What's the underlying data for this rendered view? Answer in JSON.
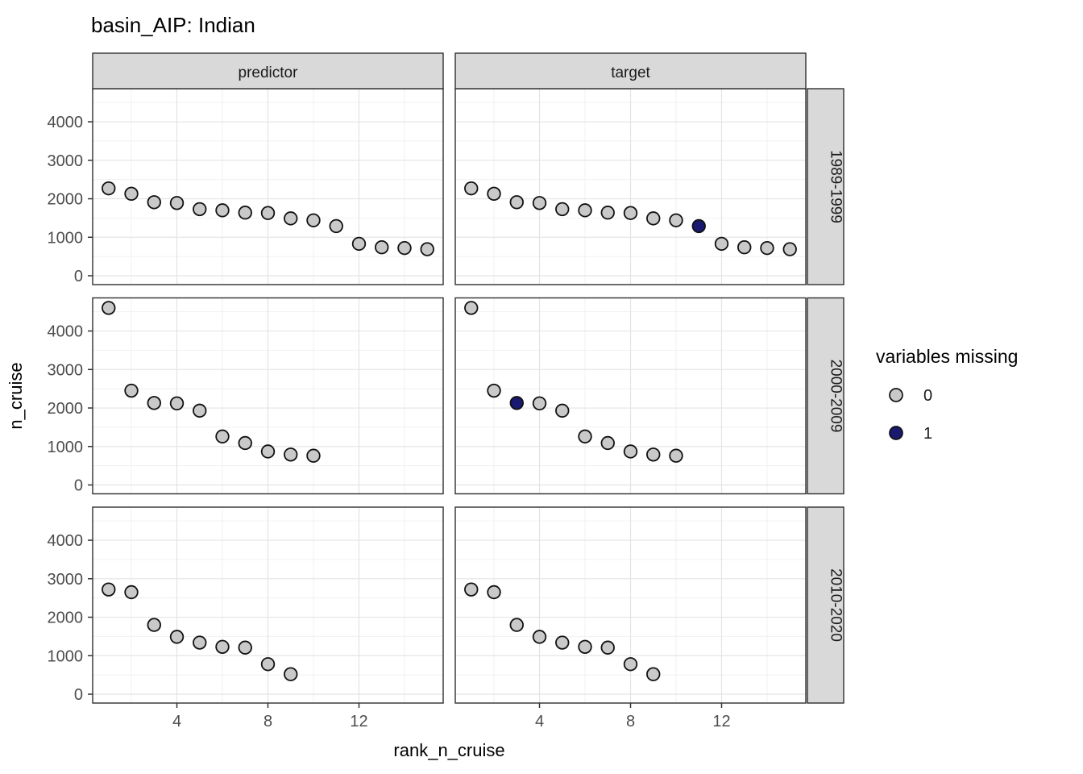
{
  "chart_data": {
    "type": "scatter",
    "title": "basin_AIP: Indian",
    "xlabel": "rank_n_cruise",
    "ylabel": "n_cruise",
    "facet_columns": [
      "predictor",
      "target"
    ],
    "facet_rows": [
      "1989-1999",
      "2000-2009",
      "2010-2020"
    ],
    "x_ticks": [
      4,
      8,
      12
    ],
    "y_ticks": [
      0,
      1000,
      2000,
      3000,
      4000
    ],
    "x_minor_ticks": [
      2,
      6,
      10,
      14
    ],
    "y_minor_ticks": [
      500,
      1500,
      2500,
      3500,
      4500
    ],
    "xlim": [
      0.3,
      15.7
    ],
    "ylim": [
      -230,
      4860
    ],
    "grid": true,
    "point_colors": {
      "present": "#c9c9c9",
      "missing": "#191970",
      "stroke": "#111111"
    },
    "panel_colors": {
      "background": "#ffffff",
      "border": "#2f2f2f",
      "strip_fill": "#d9d9d9",
      "grid_major": "#e4e4e4",
      "grid_minor": "#f1f1f1"
    },
    "legend": {
      "title": "variables missing",
      "position": "right",
      "items": [
        {
          "label": "0",
          "fill": "#c9c9c9"
        },
        {
          "label": "1",
          "fill": "#191970"
        }
      ]
    },
    "rows": [
      {
        "label": "1989-1999",
        "ranks": [
          1,
          2,
          3,
          4,
          5,
          6,
          7,
          8,
          9,
          10,
          11,
          12,
          13,
          14,
          15
        ],
        "n_cruise": [
          2270,
          2130,
          1910,
          1890,
          1730,
          1700,
          1640,
          1630,
          1490,
          1440,
          1290,
          830,
          740,
          720,
          690
        ],
        "target_missing_ranks": [
          11
        ]
      },
      {
        "label": "2000-2009",
        "ranks": [
          1,
          2,
          3,
          4,
          5,
          6,
          7,
          8,
          9,
          10
        ],
        "n_cruise": [
          4600,
          2450,
          2130,
          2120,
          1930,
          1260,
          1090,
          870,
          790,
          760
        ],
        "target_missing_ranks": [
          3
        ]
      },
      {
        "label": "2010-2020",
        "ranks": [
          1,
          2,
          3,
          4,
          5,
          6,
          7,
          8,
          9
        ],
        "n_cruise": [
          2720,
          2650,
          1800,
          1490,
          1340,
          1230,
          1210,
          780,
          520
        ],
        "target_missing_ranks": []
      }
    ]
  }
}
